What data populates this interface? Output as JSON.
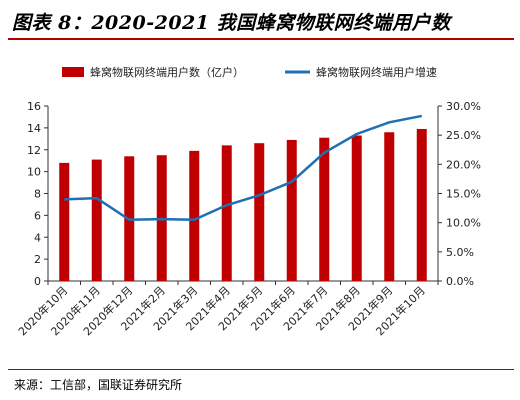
{
  "figure": {
    "title": "图表 8：2020-2021 我国蜂窝物联网终端用户数",
    "source": "来源：工信部，国联证券研究所"
  },
  "chart_data": {
    "type": "bar",
    "categories": [
      "2020年10月",
      "2020年11月",
      "2020年12月",
      "2021年2月",
      "2021年3月",
      "2021年4月",
      "2021年5月",
      "2021年6月",
      "2021年7月",
      "2021年8月",
      "2021年9月",
      "2021年10月"
    ],
    "series": [
      {
        "name": "蜂窝物联网终端用户数（亿户）",
        "type": "bar",
        "axis": "left",
        "color": "#c00000",
        "values": [
          10.8,
          11.1,
          11.4,
          11.5,
          11.9,
          12.4,
          12.6,
          12.9,
          13.1,
          13.3,
          13.6,
          13.9
        ]
      },
      {
        "name": "蜂窝物联网终端用户增速",
        "type": "line",
        "axis": "right",
        "color": "#1f6fb4",
        "values": [
          14.0,
          14.2,
          10.5,
          10.6,
          10.5,
          13.0,
          14.7,
          17.0,
          22.0,
          25.2,
          27.2,
          28.3
        ]
      }
    ],
    "y_left": {
      "min": 0,
      "max": 16,
      "step": 2,
      "ticks": [
        "0",
        "2",
        "4",
        "6",
        "8",
        "10",
        "12",
        "14",
        "16"
      ]
    },
    "y_right": {
      "min": 0,
      "max": 30,
      "step": 5,
      "ticks": [
        "0.0%",
        "5.0%",
        "10.0%",
        "15.0%",
        "20.0%",
        "25.0%",
        "30.0%"
      ]
    },
    "grid": false,
    "legend": "top"
  }
}
